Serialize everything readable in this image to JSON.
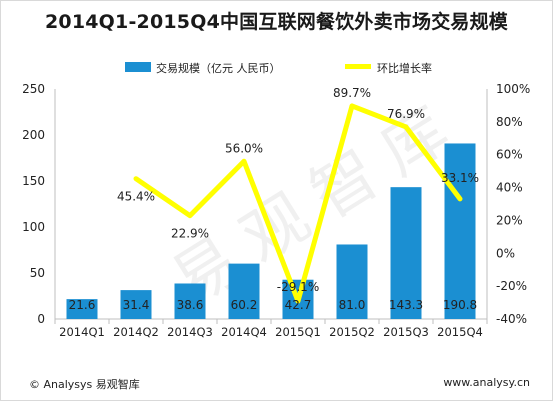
{
  "chart_data": {
    "type": "bar",
    "title": "2014Q1-2015Q4中国互联网餐饮外卖市场交易规模",
    "categories": [
      "2014Q1",
      "2014Q2",
      "2014Q3",
      "2014Q4",
      "2015Q1",
      "2015Q2",
      "2015Q3",
      "2015Q4"
    ],
    "series": [
      {
        "name": "交易规模（亿元 人民币）",
        "type": "bar",
        "axis": "left",
        "values": [
          21.6,
          31.4,
          38.6,
          60.2,
          42.7,
          81.0,
          143.3,
          190.8
        ],
        "labels": [
          "21.6",
          "31.4",
          "38.6",
          "60.2",
          "42.7",
          "81.0",
          "143.3",
          "190.8"
        ],
        "color": "#1b8fd2"
      },
      {
        "name": "环比增长率",
        "type": "line",
        "axis": "right",
        "values": [
          null,
          45.4,
          22.9,
          56.0,
          -29.1,
          89.7,
          76.9,
          33.1
        ],
        "labels": [
          "",
          "45.4%",
          "22.9%",
          "56.0%",
          "-29.1%",
          "89.7%",
          "76.9%",
          "33.1%"
        ],
        "color": "#ffff00"
      }
    ],
    "y_left": {
      "ylim": [
        0,
        250
      ],
      "ticks": [
        "0",
        "50",
        "100",
        "150",
        "200",
        "250"
      ]
    },
    "y_right": {
      "ylim": [
        -40,
        100
      ],
      "ticks": [
        "-40%",
        "-20%",
        "0%",
        "20%",
        "40%",
        "60%",
        "80%",
        "100%"
      ]
    },
    "legend_position": "top",
    "grid": false
  },
  "footer": {
    "left": "© Analysys 易观智库",
    "right": "www.analysy.cn"
  },
  "watermark": "易观智库"
}
